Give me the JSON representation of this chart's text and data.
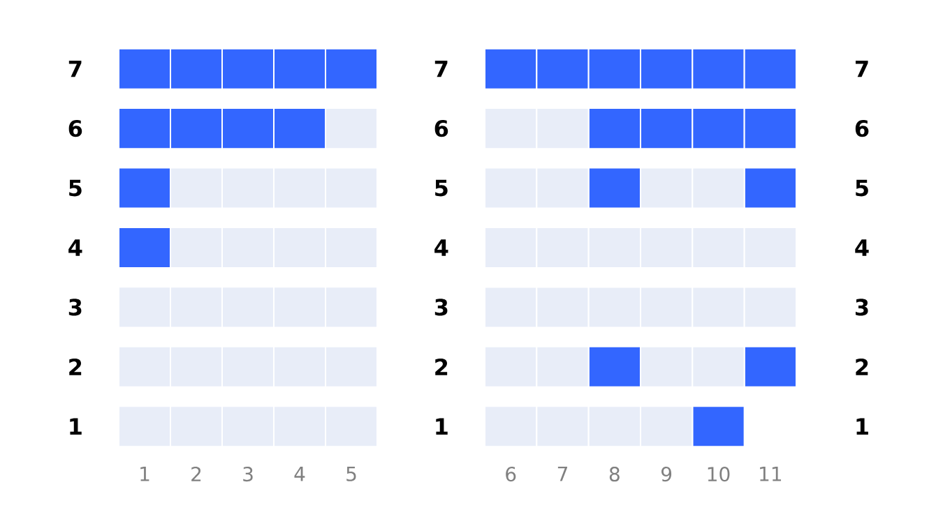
{
  "chart_data": [
    {
      "type": "scatter",
      "marker": "square",
      "xlim": [
        1,
        5
      ],
      "xticks": [
        1,
        2,
        3,
        4,
        5
      ],
      "ylim": [
        1,
        7
      ],
      "yticks": [
        1,
        2,
        3,
        4,
        5,
        6,
        7
      ],
      "series": [
        {
          "color": "#3366ff",
          "x": [
            1,
            2,
            3,
            4,
            5,
            1,
            2,
            3,
            4,
            1,
            1
          ],
          "values": [
            7,
            7,
            7,
            7,
            7,
            6,
            6,
            6,
            6,
            5,
            4
          ]
        },
        {
          "color": "#e8edf8",
          "x": [
            5,
            2,
            3,
            4,
            5,
            2,
            3,
            4,
            5,
            1,
            2,
            3,
            4,
            5,
            1,
            2,
            3,
            4,
            5,
            1,
            2,
            3,
            4,
            5
          ],
          "values": [
            6,
            5,
            5,
            5,
            5,
            4,
            4,
            4,
            4,
            3,
            3,
            3,
            3,
            3,
            2,
            2,
            2,
            2,
            2,
            1,
            1,
            1,
            1,
            1
          ]
        }
      ]
    },
    {
      "type": "scatter",
      "marker": "square",
      "xlim": [
        6,
        11
      ],
      "xticks": [
        6,
        7,
        8,
        9,
        10,
        11
      ],
      "ylim": [
        1,
        7
      ],
      "yticks": [
        1,
        2,
        3,
        4,
        5,
        6,
        7
      ],
      "y2lim": [
        1,
        7
      ],
      "y2ticks": [
        1,
        2,
        3,
        4,
        5,
        6,
        7
      ],
      "series": [
        {
          "color": "#3366ff",
          "x": [
            6,
            7,
            8,
            9,
            10,
            11,
            8,
            9,
            10,
            11,
            8,
            11,
            8,
            11,
            10
          ],
          "values": [
            7,
            7,
            7,
            7,
            7,
            7,
            6,
            6,
            6,
            6,
            5,
            5,
            2,
            2,
            1
          ]
        },
        {
          "color": "#e8edf8",
          "x": [
            6,
            7,
            6,
            7,
            9,
            10,
            6,
            7,
            8,
            9,
            10,
            11,
            6,
            7,
            8,
            9,
            10,
            11,
            6,
            7,
            9,
            10,
            6,
            7,
            8,
            9
          ],
          "values": [
            6,
            6,
            5,
            5,
            5,
            5,
            4,
            4,
            4,
            4,
            4,
            4,
            3,
            3,
            3,
            3,
            3,
            3,
            2,
            2,
            2,
            2,
            1,
            1,
            1,
            1
          ]
        }
      ]
    }
  ]
}
